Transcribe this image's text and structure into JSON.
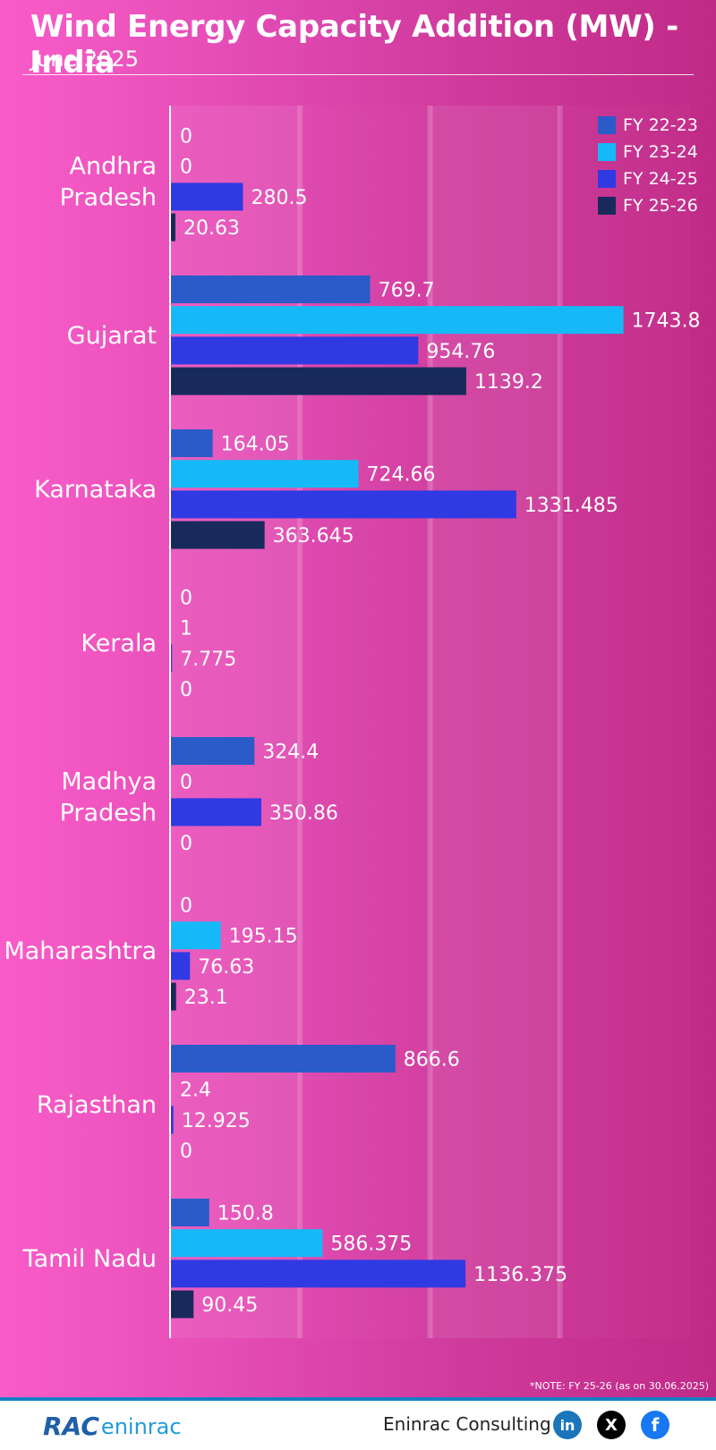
{
  "header": {
    "title": "Wind Energy Capacity Addition (MW) - India",
    "subtitle": "June 2025"
  },
  "colors": {
    "fy2223": "#2a5bc9",
    "fy2324": "#16b9f7",
    "fy2425": "#2f3ae3",
    "fy2526": "#182a5c"
  },
  "chart_data": {
    "type": "bar",
    "orientation": "horizontal",
    "title": "Wind Energy Capacity Addition (MW) - India",
    "subtitle": "June 2025",
    "categories": [
      [
        "Andhra",
        "Pradesh"
      ],
      [
        "Gujarat"
      ],
      [
        "Karnataka"
      ],
      [
        "Kerala"
      ],
      [
        "Madhya",
        "Pradesh"
      ],
      [
        "Maharashtra"
      ],
      [
        "Rajasthan"
      ],
      [
        "Tamil Nadu"
      ]
    ],
    "series": [
      {
        "name": "FY 22-23",
        "values": [
          0,
          769.7,
          164.05,
          0,
          324.4,
          0,
          866.6,
          150.8
        ],
        "labels": [
          "0",
          "769.7",
          "164.05",
          "0",
          "324.4",
          "0",
          "866.6",
          "150.8"
        ]
      },
      {
        "name": "FY 23-24",
        "values": [
          0,
          1743.8,
          724.66,
          1,
          0,
          195.15,
          2.4,
          586.375
        ],
        "labels": [
          "0",
          "1743.8",
          "724.66",
          "1",
          "0",
          "195.15",
          "2.4",
          "586.375"
        ]
      },
      {
        "name": "FY 24-25",
        "values": [
          280.5,
          954.76,
          1331.485,
          7.775,
          350.86,
          76.63,
          12.925,
          1136.375
        ],
        "labels": [
          "280.5",
          "954.76",
          "1331.485",
          "7.775",
          "350.86",
          "76.63",
          "12.925",
          "1136.375"
        ]
      },
      {
        "name": "FY 25-26",
        "values": [
          20.63,
          1139.2,
          363.645,
          0,
          0,
          23.1,
          0,
          90.45
        ],
        "labels": [
          "20.63",
          "1139.2",
          "363.645",
          "0",
          "0",
          "23.1",
          "0",
          "90.45"
        ]
      }
    ],
    "xlim": [
      0,
      2000
    ],
    "grid": true,
    "legend_position": "top-right"
  },
  "note": "*NOTE: FY 25-26 (as on 30.06.2025)",
  "footer": {
    "logo_rac": "RAC",
    "logo_eninrac": "eninrac",
    "brand": "Eninrac Consulting",
    "linkedin": "in",
    "x": "X",
    "facebook": "f"
  }
}
